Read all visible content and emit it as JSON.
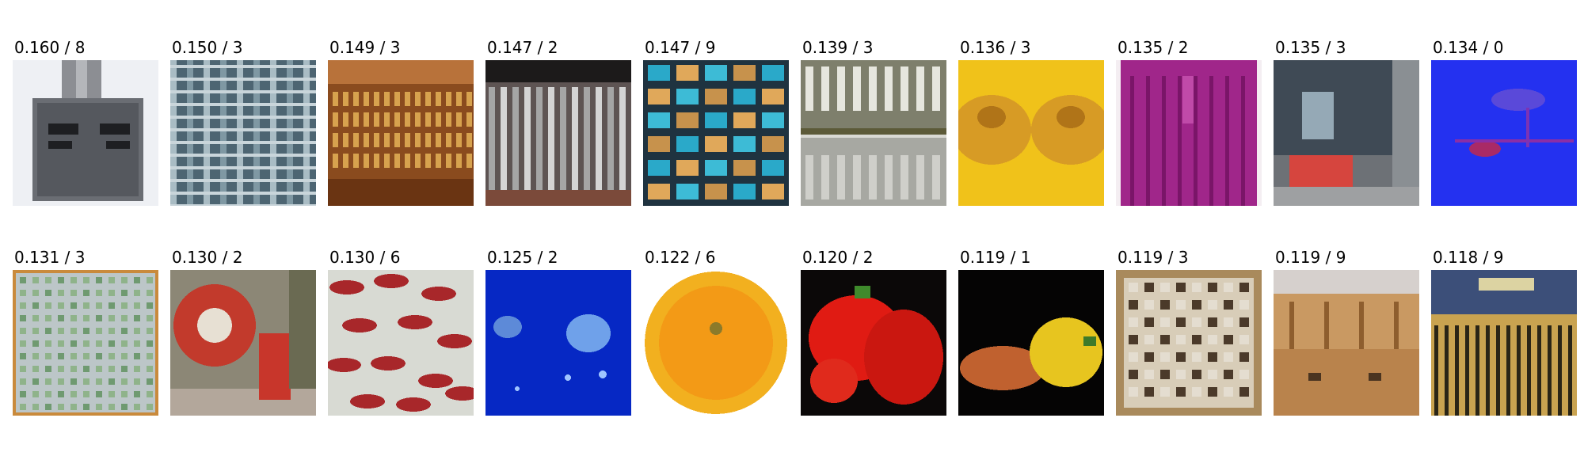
{
  "rows": [
    [
      {
        "label": "0.160 / 8",
        "image": "pixelated-tile-gray-adapter"
      },
      {
        "label": "0.150 / 3",
        "image": "pixelated-tile-building-facade"
      },
      {
        "label": "0.149 / 3",
        "image": "pixelated-tile-wooden-rack"
      },
      {
        "label": "0.147 / 2",
        "image": "pixelated-tile-metal-grille"
      },
      {
        "label": "0.147 / 9",
        "image": "pixelated-tile-blue-window-grid"
      },
      {
        "label": "0.139 / 3",
        "image": "pixelated-tile-striped-panels"
      },
      {
        "label": "0.136 / 3",
        "image": "pixelated-tile-yellow-fruit"
      },
      {
        "label": "0.135 / 2",
        "image": "pixelated-tile-purple-robe"
      },
      {
        "label": "0.135 / 3",
        "image": "pixelated-tile-storefront"
      },
      {
        "label": "0.134 / 0",
        "image": "pixelated-tile-blue-jellyfish"
      }
    ],
    [
      {
        "label": "0.131 / 3",
        "image": "pixelated-tile-green-grid"
      },
      {
        "label": "0.130 / 2",
        "image": "pixelated-tile-red-wheel"
      },
      {
        "label": "0.130 / 6",
        "image": "pixelated-tile-red-lobster-pattern"
      },
      {
        "label": "0.125 / 2",
        "image": "pixelated-tile-deep-blue-jellyfish"
      },
      {
        "label": "0.122 / 6",
        "image": "pixelated-tile-orange"
      },
      {
        "label": "0.120 / 2",
        "image": "pixelated-tile-red-peppers"
      },
      {
        "label": "0.119 / 1",
        "image": "pixelated-tile-yellow-peppers"
      },
      {
        "label": "0.119 / 3",
        "image": "pixelated-tile-abacus"
      },
      {
        "label": "0.119 / 9",
        "image": "pixelated-tile-tan-chest"
      },
      {
        "label": "0.118 / 9",
        "image": "pixelated-tile-bus-front"
      }
    ]
  ]
}
